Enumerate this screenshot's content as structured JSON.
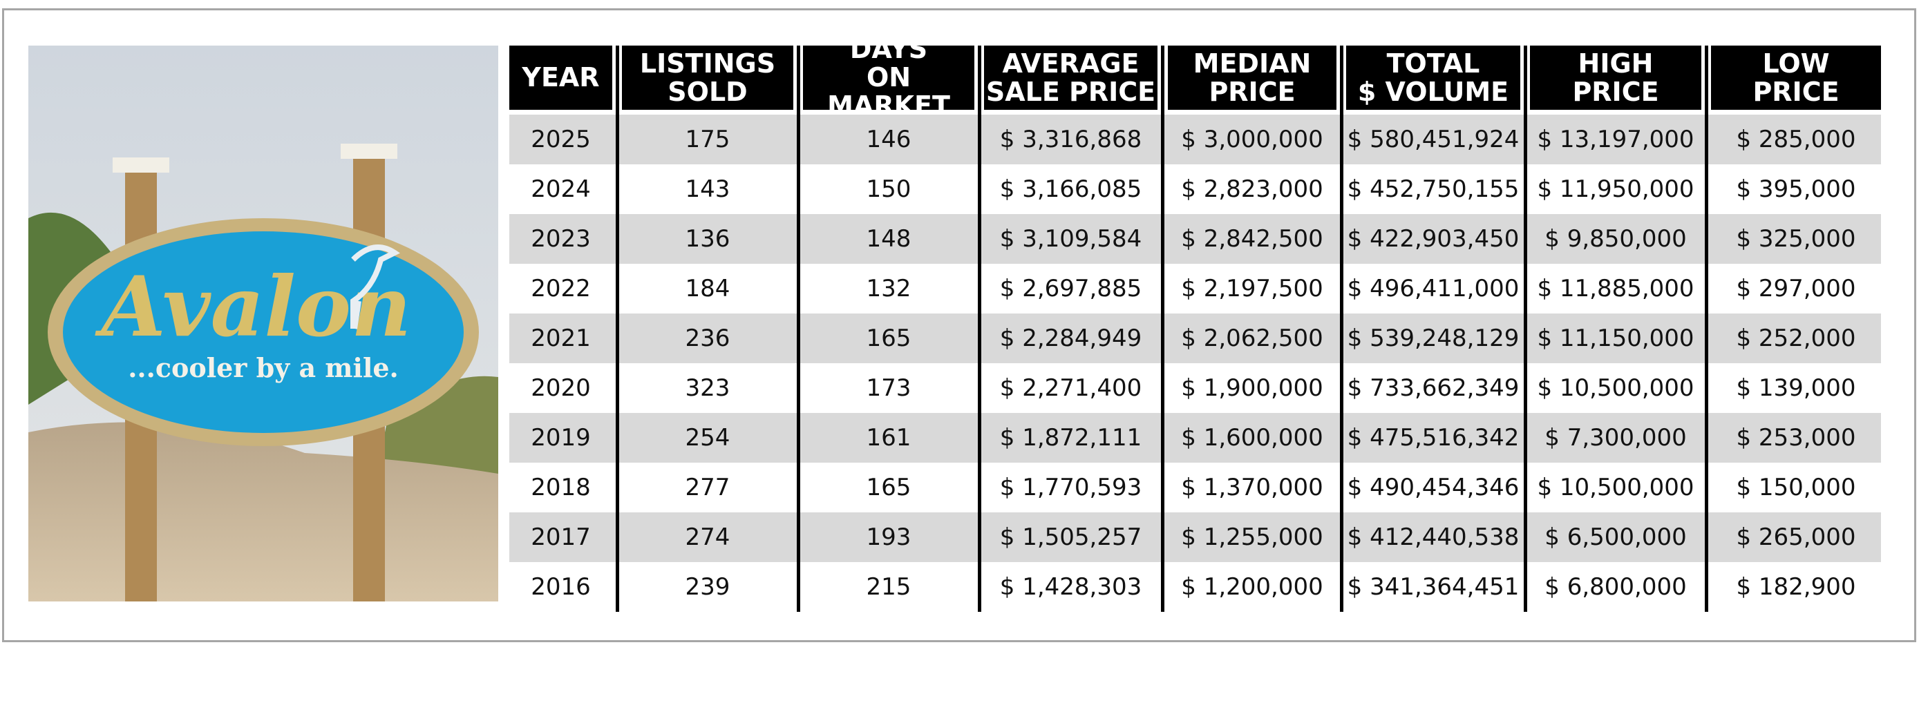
{
  "image": {
    "sign_title": "Avalon",
    "sign_tagline": "...cooler by a mile."
  },
  "table": {
    "header": [
      [
        "YEAR"
      ],
      [
        "LISTINGS",
        "SOLD"
      ],
      [
        "DAYS",
        "ON MARKET"
      ],
      [
        "AVERAGE",
        "SALE PRICE"
      ],
      [
        "MEDIAN",
        "PRICE"
      ],
      [
        "TOTAL",
        "$ VOLUME"
      ],
      [
        "HIGH",
        "PRICE"
      ],
      [
        "LOW",
        "PRICE"
      ]
    ],
    "rows": [
      [
        "2025",
        "175",
        "146",
        "$ 3,316,868",
        "$ 3,000,000",
        "$ 580,451,924",
        "$ 13,197,000",
        "$ 285,000"
      ],
      [
        "2024",
        "143",
        "150",
        "$ 3,166,085",
        "$ 2,823,000",
        "$ 452,750,155",
        "$ 11,950,000",
        "$ 395,000"
      ],
      [
        "2023",
        "136",
        "148",
        "$ 3,109,584",
        "$ 2,842,500",
        "$ 422,903,450",
        "$ 9,850,000",
        "$ 325,000"
      ],
      [
        "2022",
        "184",
        "132",
        "$ 2,697,885",
        "$ 2,197,500",
        "$ 496,411,000",
        "$ 11,885,000",
        "$ 297,000"
      ],
      [
        "2021",
        "236",
        "165",
        "$ 2,284,949",
        "$ 2,062,500",
        "$ 539,248,129",
        "$ 11,150,000",
        "$ 252,000"
      ],
      [
        "2020",
        "323",
        "173",
        "$ 2,271,400",
        "$ 1,900,000",
        "$ 733,662,349",
        "$ 10,500,000",
        "$ 139,000"
      ],
      [
        "2019",
        "254",
        "161",
        "$ 1,872,111",
        "$ 1,600,000",
        "$ 475,516,342",
        "$ 7,300,000",
        "$ 253,000"
      ],
      [
        "2018",
        "277",
        "165",
        "$ 1,770,593",
        "$ 1,370,000",
        "$ 490,454,346",
        "$ 10,500,000",
        "$ 150,000"
      ],
      [
        "2017",
        "274",
        "193",
        "$ 1,505,257",
        "$ 1,255,000",
        "$ 412,440,538",
        "$ 6,500,000",
        "$ 265,000"
      ],
      [
        "2016",
        "239",
        "215",
        "$ 1,428,303",
        "$ 1,200,000",
        "$ 341,364,451",
        "$ 6,800,000",
        "$ 182,900"
      ]
    ]
  }
}
